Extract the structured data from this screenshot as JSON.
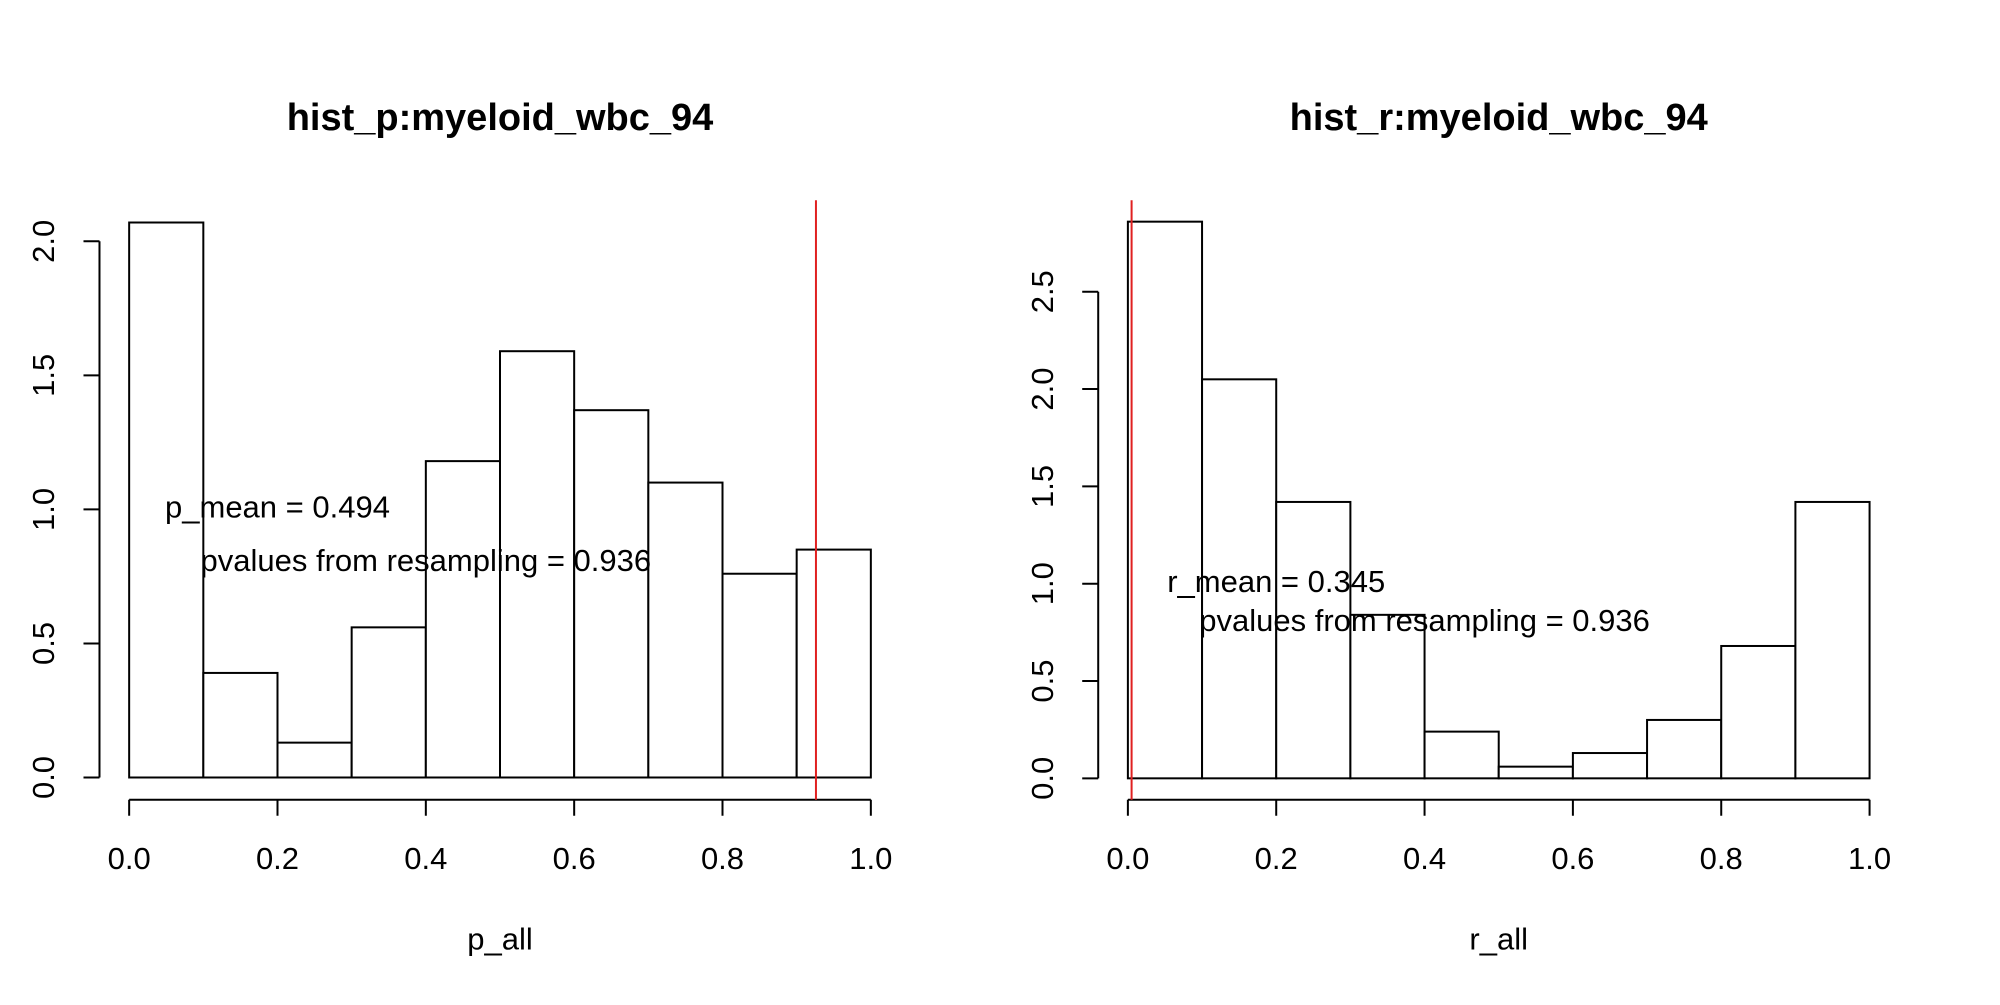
{
  "chart_data": [
    {
      "type": "histogram",
      "title": "hist_p:myeloid_wbc_94",
      "x_label": "p_all",
      "bins": [
        0,
        0.1,
        0.2,
        0.3,
        0.4,
        0.5,
        0.6,
        0.7,
        0.8,
        0.9,
        1.0
      ],
      "values": [
        2.07,
        0.39,
        0.13,
        0.56,
        1.18,
        1.59,
        1.37,
        1.1,
        0.76,
        0.85
      ],
      "color": "#ffffff",
      "edge_color": "#000000",
      "vline": 0.926,
      "vline_color": "#e02020",
      "annotations": [
        "p_mean = 0.494",
        "pvalues from resampling = 0.936"
      ],
      "xlim": [
        -0.04,
        1.04
      ],
      "ylim": [
        -0.083,
        2.153
      ],
      "xticks": [
        {
          "value": 0,
          "label": "0.0"
        },
        {
          "value": 0.2,
          "label": "0.2"
        },
        {
          "value": 0.4,
          "label": "0.4"
        },
        {
          "value": 0.6,
          "label": "0.6"
        },
        {
          "value": 0.8,
          "label": "0.8"
        },
        {
          "value": 1,
          "label": "1.0"
        }
      ],
      "yticks": [
        {
          "value": 0,
          "label": "0.0"
        },
        0.5,
        {
          "value": 1,
          "label": "1.0"
        },
        1.5,
        {
          "value": 2,
          "label": "2.0"
        }
      ]
    },
    {
      "type": "histogram",
      "title": "hist_r:myeloid_wbc_94",
      "x_label": "r_all",
      "bins": [
        0,
        0.1,
        0.2,
        0.3,
        0.4,
        0.5,
        0.6,
        0.7,
        0.8,
        0.9,
        1.0
      ],
      "values": [
        2.86,
        2.05,
        1.42,
        0.84,
        0.24,
        0.06,
        0.13,
        0.3,
        0.68,
        1.42
      ],
      "color": "#ffffff",
      "edge_color": "#000000",
      "vline": 0.005,
      "vline_color": "#e02020",
      "annotations": [
        "r_mean = 0.345",
        "pvalues from resampling = 0.936"
      ],
      "xlim": [
        -0.04,
        1.04
      ],
      "ylim": [
        -0.11,
        2.97
      ],
      "xticks": [
        {
          "value": 0,
          "label": "0.0"
        },
        {
          "value": 0.2,
          "label": "0.2"
        },
        {
          "value": 0.4,
          "label": "0.4"
        },
        {
          "value": 0.6,
          "label": "0.6"
        },
        {
          "value": 0.8,
          "label": "0.8"
        },
        {
          "value": 1,
          "label": "1.0"
        }
      ],
      "yticks": [
        {
          "value": 0,
          "label": "0.0"
        },
        0.5,
        {
          "value": 1,
          "label": "1.0"
        },
        1.5,
        {
          "value": 2,
          "label": "2.0"
        },
        2.5
      ]
    }
  ]
}
